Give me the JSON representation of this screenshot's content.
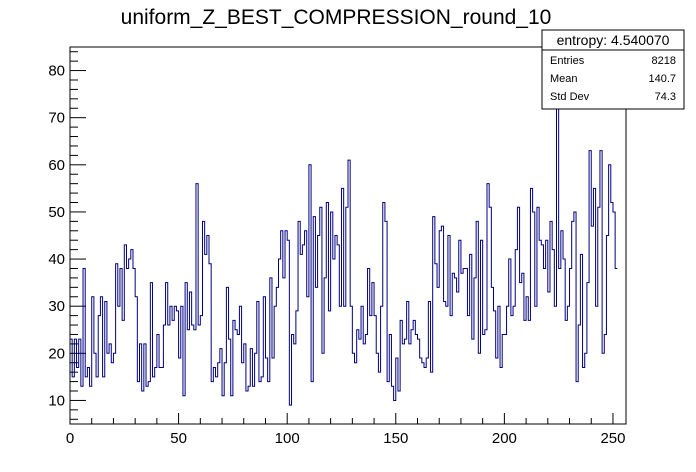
{
  "chart_data": {
    "type": "bar",
    "title": "uniform_Z_BEST_COMPRESSION_round_10",
    "xlabel": "",
    "ylabel": "",
    "xlim": [
      0,
      256
    ],
    "ylim": [
      5,
      85
    ],
    "x_ticks": [
      0,
      50,
      100,
      150,
      200,
      250
    ],
    "y_ticks": [
      10,
      20,
      30,
      40,
      50,
      60,
      70,
      80
    ],
    "grid": false,
    "style": "step-histogram",
    "line_color": "#000080",
    "bin_width": 1,
    "values": [
      23,
      15,
      23,
      17,
      23,
      13,
      38,
      15,
      17,
      13,
      32,
      20,
      15,
      28,
      32,
      15,
      31,
      20,
      22,
      18,
      20,
      39,
      30,
      38,
      27,
      43,
      38,
      40,
      42,
      38,
      32,
      14,
      22,
      12,
      22,
      13,
      14,
      35,
      15,
      17,
      24,
      17,
      17,
      26,
      35,
      26,
      30,
      27,
      30,
      29,
      19,
      30,
      11,
      35,
      25,
      33,
      26,
      25,
      56,
      26,
      28,
      48,
      41,
      45,
      39,
      14,
      17,
      15,
      18,
      21,
      11,
      18,
      34,
      23,
      11,
      27,
      25,
      24,
      30,
      18,
      22,
      12,
      13,
      21,
      13,
      20,
      31,
      14,
      15,
      32,
      19,
      14,
      36,
      19,
      30,
      34,
      40,
      46,
      36,
      46,
      44,
      9,
      24,
      22,
      29,
      48,
      41,
      43,
      46,
      32,
      60,
      14,
      49,
      34,
      45,
      51,
      20,
      36,
      52,
      29,
      50,
      40,
      45,
      43,
      30,
      55,
      30,
      51,
      61,
      30,
      20,
      18,
      25,
      23,
      30,
      22,
      24,
      38,
      28,
      35,
      28,
      20,
      16,
      30,
      52,
      48,
      14,
      24,
      13,
      10,
      19,
      12,
      27,
      22,
      23,
      31,
      22,
      25,
      27,
      24,
      23,
      19,
      18,
      17,
      19,
      31,
      16,
      49,
      39,
      34,
      46,
      47,
      31,
      30,
      45,
      28,
      37,
      36,
      33,
      44,
      37,
      38,
      38,
      28,
      41,
      23,
      36,
      48,
      20,
      44,
      24,
      25,
      56,
      51,
      34,
      29,
      19,
      30,
      17,
      24,
      24,
      30,
      40,
      28,
      30,
      42,
      51,
      35,
      37,
      27,
      32,
      27,
      55,
      50,
      30,
      51,
      44,
      43,
      38,
      44,
      33,
      48,
      42,
      30,
      74,
      38,
      46,
      40,
      27,
      30,
      38,
      48,
      50,
      14,
      26,
      41,
      17,
      20,
      35,
      63,
      47,
      55,
      30,
      51,
      63,
      20,
      24,
      45,
      60,
      52,
      50,
      38
    ]
  },
  "stats_box": {
    "title": "entropy: 4.540070",
    "rows": [
      {
        "label": "Entries",
        "value": "8218"
      },
      {
        "label": "Mean",
        "value": "140.7"
      },
      {
        "label": "Std Dev",
        "value": "74.3"
      }
    ]
  }
}
